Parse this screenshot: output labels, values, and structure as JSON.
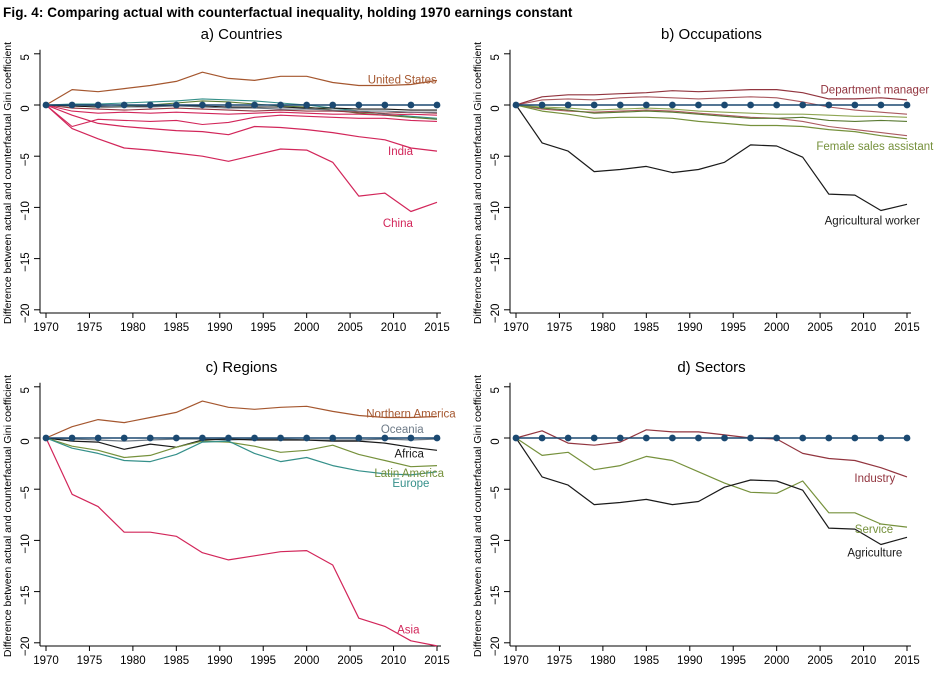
{
  "figure_title": "Fig. 4: Comparing actual with counterfactual inequality, holding 1970 earnings constant",
  "axis": {
    "ylabel": "Difference between actual and counterfactual Gini coefficient",
    "yticks": [
      5,
      0,
      -5,
      -10,
      -15,
      -20
    ],
    "xticks": [
      1970,
      1975,
      1980,
      1985,
      1990,
      1995,
      2000,
      2005,
      2010,
      2015
    ],
    "xrange": [
      1970,
      2015
    ],
    "yrange": [
      -21,
      5.5
    ],
    "grid": "off",
    "legend": "direct-line-labels"
  },
  "x_years": [
    1970,
    1973,
    1976,
    1979,
    1982,
    1985,
    1988,
    1991,
    1994,
    1997,
    2000,
    2003,
    2006,
    2009,
    2012,
    2015
  ],
  "colors": {
    "navy": "#1b4971",
    "sienna": "#a5572f",
    "crimson": "#d2265a",
    "maroon": "#92353f",
    "red_soft": "#ab5a60",
    "olive": "#76913c",
    "green_dark": "#5a7a33",
    "green_light": "#8fa653",
    "teal": "#35908a",
    "gray": "#6d7a87",
    "black": "#1a1a1a"
  },
  "chart_data": [
    {
      "type": "line",
      "panel": "a",
      "title": "a) Countries",
      "series": [
        {
          "name": "cluster-teal",
          "color": "#35908a",
          "width": 1.1,
          "values": [
            0,
            0.1,
            0.1,
            0.2,
            0.3,
            0.4,
            0.6,
            0.5,
            0.4,
            0.2,
            0,
            -0.3,
            -0.6,
            -0.9,
            -1.1,
            -1.3
          ]
        },
        {
          "name": "cluster-green",
          "color": "#5a7a33",
          "width": 1.1,
          "values": [
            0,
            -0.1,
            -0.2,
            -0.1,
            0,
            0.2,
            0.4,
            0.3,
            0.1,
            -0.1,
            -0.2,
            -0.5,
            -0.8,
            -1.0,
            -1.2,
            -1.4
          ]
        },
        {
          "name": "cluster-maroon",
          "color": "#92353f",
          "width": 1.1,
          "values": [
            0,
            -0.3,
            -0.4,
            -0.5,
            -0.4,
            -0.3,
            -0.4,
            -0.5,
            -0.6,
            -0.5,
            -0.6,
            -0.6,
            -0.7,
            -0.8,
            -0.7,
            -0.8
          ]
        },
        {
          "name": "cluster-dark",
          "color": "#1a1a1a",
          "width": 1.1,
          "values": [
            0,
            -0.1,
            -0.2,
            -0.2,
            -0.1,
            -0.1,
            -0.1,
            -0.2,
            -0.2,
            -0.2,
            -0.3,
            -0.3,
            -0.4,
            -0.4,
            -0.5,
            -0.5
          ]
        },
        {
          "name": "cluster-gray",
          "color": "#6d7a87",
          "width": 1.1,
          "values": [
            0,
            0,
            -0.1,
            -0.2,
            -0.2,
            -0.1,
            -0.2,
            -0.3,
            -0.3,
            -0.4,
            -0.4,
            -0.5,
            -0.6,
            -0.6,
            -0.7,
            -0.7
          ]
        },
        {
          "name": "cluster-red-a",
          "color": "#d2265a",
          "width": 1.1,
          "values": [
            0,
            -2.1,
            -1.4,
            -1.5,
            -1.6,
            -1.5,
            -1.9,
            -1.7,
            -1.2,
            -1.0,
            -1.1,
            -1.2,
            -1.3,
            -1.3,
            -1.5,
            -1.6
          ]
        },
        {
          "name": "cluster-red-b",
          "color": "#d2265a",
          "width": 1.1,
          "values": [
            0,
            -0.6,
            -0.8,
            -0.7,
            -0.8,
            -0.7,
            -0.8,
            -0.9,
            -0.8,
            -0.7,
            -0.8,
            -0.9,
            -0.9,
            -1.0,
            -0.9,
            -1.0
          ]
        },
        {
          "name": "United States",
          "color": "#a5572f",
          "width": 1.2,
          "values": [
            0,
            1.5,
            1.3,
            1.6,
            1.9,
            2.3,
            3.2,
            2.6,
            2.4,
            2.8,
            2.8,
            2.2,
            1.9,
            1.9,
            2.0,
            2.4
          ],
          "label": {
            "text": "United States",
            "x": 2011,
            "y": 2.5
          }
        },
        {
          "name": "India",
          "color": "#d2265a",
          "width": 1.2,
          "values": [
            0,
            -1.0,
            -1.8,
            -2.1,
            -2.3,
            -2.5,
            -2.6,
            -2.9,
            -2.1,
            -2.2,
            -2.4,
            -2.7,
            -3.1,
            -3.4,
            -4.2,
            -4.5
          ],
          "label": {
            "text": "India",
            "x": 2010.8,
            "y": -4.5
          }
        },
        {
          "name": "China",
          "color": "#d2265a",
          "width": 1.2,
          "values": [
            0,
            -2.3,
            -3.3,
            -4.2,
            -4.4,
            -4.7,
            -5.0,
            -5.5,
            -4.9,
            -4.3,
            -4.4,
            -5.6,
            -8.9,
            -8.6,
            -10.4,
            -9.5
          ],
          "label": {
            "text": "China",
            "x": 2010.5,
            "y": -11.5
          }
        },
        {
          "name": "zero-line",
          "color": "#1b4971",
          "width": 1.5,
          "marker": true,
          "values": [
            0,
            0,
            0,
            0,
            0,
            0,
            0,
            0,
            0,
            0,
            0,
            0,
            0,
            0,
            0,
            0
          ]
        }
      ]
    },
    {
      "type": "line",
      "panel": "b",
      "title": "b) Occupations",
      "series": [
        {
          "name": "occ-red-2",
          "color": "#ab5a60",
          "width": 1.1,
          "values": [
            0,
            0.5,
            0.6,
            0.5,
            0.7,
            0.8,
            0.7,
            0.6,
            0.7,
            0.8,
            0.7,
            0.3,
            -0.2,
            -0.5,
            -0.7,
            -0.9
          ]
        },
        {
          "name": "occ-red-3",
          "color": "#ab5a60",
          "width": 1.1,
          "values": [
            0,
            -0.4,
            -0.6,
            -0.7,
            -0.6,
            -0.5,
            -0.6,
            -0.8,
            -1.0,
            -1.2,
            -1.3,
            -1.6,
            -2.1,
            -2.4,
            -2.7,
            -3.0
          ]
        },
        {
          "name": "occ-green-2",
          "color": "#5a7a33",
          "width": 1.1,
          "values": [
            0,
            -0.3,
            -0.5,
            -0.8,
            -0.7,
            -0.6,
            -0.7,
            -0.9,
            -1.1,
            -1.3,
            -1.3,
            -1.2,
            -1.5,
            -1.6,
            -1.5,
            -1.6
          ]
        },
        {
          "name": "occ-green-3",
          "color": "#8fa653",
          "width": 1.1,
          "values": [
            0,
            -0.2,
            -0.3,
            -0.5,
            -0.4,
            -0.3,
            -0.4,
            -0.6,
            -0.7,
            -0.8,
            -0.9,
            -0.9,
            -1.0,
            -1.1,
            -1.1,
            -1.2
          ]
        },
        {
          "name": "Department manager",
          "color": "#92353f",
          "width": 1.2,
          "values": [
            0,
            0.8,
            1.0,
            1.0,
            1.1,
            1.2,
            1.4,
            1.3,
            1.4,
            1.5,
            1.5,
            1.2,
            0.6,
            0.6,
            0.7,
            0.5
          ],
          "label": {
            "text": "Department manager",
            "x": 2011.3,
            "y": 1.5
          }
        },
        {
          "name": "Female sales assistant",
          "color": "#76913c",
          "width": 1.2,
          "values": [
            0,
            -0.6,
            -0.9,
            -1.3,
            -1.2,
            -1.2,
            -1.3,
            -1.6,
            -1.8,
            -2.0,
            -2.0,
            -2.1,
            -2.4,
            -2.6,
            -3.0,
            -3.3
          ],
          "label": {
            "text": "Female sales assistant",
            "x": 2011.3,
            "y": -4.0
          }
        },
        {
          "name": "Agricultural worker",
          "color": "#1a1a1a",
          "width": 1.2,
          "values": [
            0,
            -3.7,
            -4.5,
            -6.5,
            -6.3,
            -6.0,
            -6.6,
            -6.3,
            -5.6,
            -3.9,
            -4.0,
            -5.1,
            -8.7,
            -8.8,
            -10.3,
            -9.7
          ],
          "label": {
            "text": "Agricultural worker",
            "x": 2011,
            "y": -11.3
          }
        },
        {
          "name": "zero-line",
          "color": "#1b4971",
          "width": 1.5,
          "marker": true,
          "values": [
            0,
            0,
            0,
            0,
            0,
            0,
            0,
            0,
            0,
            0,
            0,
            0,
            0,
            0,
            0,
            0
          ]
        }
      ]
    },
    {
      "type": "line",
      "panel": "c",
      "title": "c) Regions",
      "series": [
        {
          "name": "Northern America",
          "color": "#a5572f",
          "width": 1.2,
          "values": [
            0,
            1.1,
            1.8,
            1.5,
            2.0,
            2.5,
            3.6,
            3.0,
            2.8,
            3.0,
            3.1,
            2.6,
            2.2,
            2.0,
            2.0,
            2.1
          ],
          "label": {
            "text": "Northern America",
            "x": 2012,
            "y": 2.4
          }
        },
        {
          "name": "Oceania",
          "color": "#6d7a87",
          "width": 1.2,
          "values": [
            0,
            -0.1,
            -0.2,
            -0.3,
            -0.2,
            -0.1,
            -0.1,
            -0.2,
            -0.1,
            -0.1,
            -0.2,
            -0.2,
            -0.2,
            -0.1,
            -0.2,
            -0.1
          ],
          "label": {
            "text": "Oceania",
            "x": 2011,
            "y": 0.9
          }
        },
        {
          "name": "Africa",
          "color": "#1a1a1a",
          "width": 1.2,
          "values": [
            0,
            -0.3,
            -0.4,
            -1.1,
            -0.6,
            -0.9,
            -0.2,
            -0.1,
            -0.2,
            -0.2,
            -0.2,
            -0.3,
            -0.3,
            -0.5,
            -0.9,
            -1.2
          ],
          "label": {
            "text": "Africa",
            "x": 2011.8,
            "y": -1.5
          }
        },
        {
          "name": "Latin America",
          "color": "#76913c",
          "width": 1.2,
          "values": [
            0,
            -0.8,
            -1.2,
            -1.9,
            -1.7,
            -0.9,
            -0.3,
            -0.4,
            -0.8,
            -1.4,
            -1.2,
            -0.7,
            -1.6,
            -2.2,
            -2.8,
            -2.7
          ],
          "label": {
            "text": "Latin America",
            "x": 2011.8,
            "y": -3.4
          }
        },
        {
          "name": "Europe",
          "color": "#35908a",
          "width": 1.2,
          "values": [
            0,
            -1.0,
            -1.5,
            -2.2,
            -2.3,
            -1.6,
            -0.4,
            -0.3,
            -1.5,
            -2.3,
            -1.9,
            -2.7,
            -3.2,
            -3.5,
            -3.6,
            -3.3
          ],
          "label": {
            "text": "Europe",
            "x": 2012,
            "y": -4.4
          }
        },
        {
          "name": "Asia",
          "color": "#d2265a",
          "width": 1.2,
          "values": [
            0,
            -5.5,
            -6.7,
            -9.2,
            -9.2,
            -9.6,
            -11.2,
            -11.9,
            -11.5,
            -11.1,
            -11.0,
            -12.4,
            -17.6,
            -18.4,
            -19.8,
            -20.3
          ],
          "label": {
            "text": "Asia",
            "x": 2011.7,
            "y": -18.7
          }
        },
        {
          "name": "zero-line",
          "color": "#1b4971",
          "width": 1.5,
          "marker": true,
          "values": [
            0,
            0,
            0,
            0,
            0,
            0,
            0,
            0,
            0,
            0,
            0,
            0,
            0,
            0,
            0,
            0
          ]
        }
      ]
    },
    {
      "type": "line",
      "panel": "d",
      "title": "d) Sectors",
      "series": [
        {
          "name": "Industry",
          "color": "#92353f",
          "width": 1.2,
          "values": [
            0,
            0.7,
            -0.5,
            -0.7,
            -0.4,
            0.8,
            0.6,
            0.6,
            0.3,
            0.0,
            -0.1,
            -1.5,
            -2.0,
            -2.2,
            -2.9,
            -3.8
          ],
          "label": {
            "text": "Industry",
            "x": 2011.3,
            "y": -3.9
          }
        },
        {
          "name": "Service",
          "color": "#76913c",
          "width": 1.2,
          "values": [
            0,
            -1.7,
            -1.4,
            -3.1,
            -2.7,
            -1.8,
            -2.2,
            -3.3,
            -4.4,
            -5.3,
            -5.4,
            -4.2,
            -7.3,
            -7.3,
            -8.4,
            -8.7
          ],
          "label": {
            "text": "Service",
            "x": 2011.2,
            "y": -8.9
          }
        },
        {
          "name": "Agriculture",
          "color": "#1a1a1a",
          "width": 1.2,
          "values": [
            0,
            -3.8,
            -4.6,
            -6.5,
            -6.3,
            -6.0,
            -6.5,
            -6.2,
            -4.8,
            -4.1,
            -4.2,
            -5.1,
            -8.8,
            -8.9,
            -10.4,
            -9.7
          ],
          "label": {
            "text": "Agriculture",
            "x": 2011.3,
            "y": -11.2
          }
        },
        {
          "name": "zero-line",
          "color": "#1b4971",
          "width": 1.5,
          "marker": true,
          "values": [
            0,
            0,
            0,
            0,
            0,
            0,
            0,
            0,
            0,
            0,
            0,
            0,
            0,
            0,
            0,
            0
          ]
        }
      ]
    }
  ]
}
